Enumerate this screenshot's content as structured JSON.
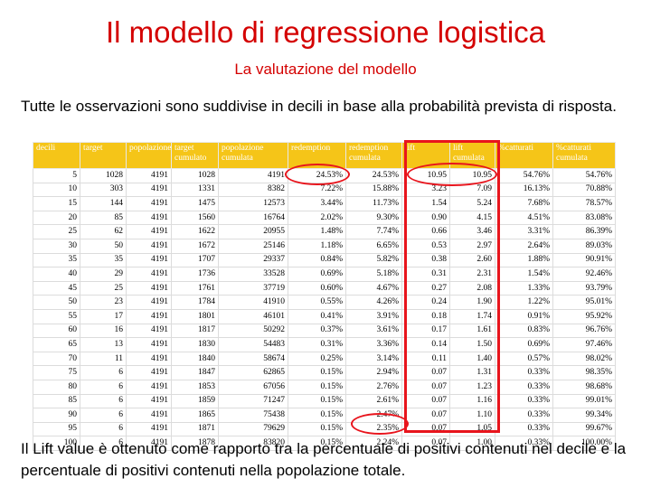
{
  "slide": {
    "title": "Il modello di regressione logistica",
    "subtitle": "La valutazione del modello",
    "intro": "Tutte le osservazioni sono suddivise in decili in base alla probabilità prevista di risposta.",
    "footer": "Il Lift value è ottenuto come rapporto tra la percentuale di positivi contenuti nel decile e la percentuale di positivi contenuti nella popolazione totale."
  },
  "colors": {
    "title": "#d40000",
    "header": "#f5c518",
    "highlight": "#e8141c"
  },
  "table": {
    "headers": [
      "decili",
      "target",
      "popolazione",
      "target cumulato",
      "popolazione cumulata",
      "redemption",
      "redemption cumulata",
      "lift",
      "lift cumulata",
      "%catturati",
      "%catturati cumulata"
    ],
    "rows": [
      [
        "5",
        "1028",
        "4191",
        "1028",
        "4191",
        "24.53%",
        "24.53%",
        "10.95",
        "10.95",
        "54.76%",
        "54.76%"
      ],
      [
        "10",
        "303",
        "4191",
        "1331",
        "8382",
        "7.22%",
        "15.88%",
        "3.23",
        "7.09",
        "16.13%",
        "70.88%"
      ],
      [
        "15",
        "144",
        "4191",
        "1475",
        "12573",
        "3.44%",
        "11.73%",
        "1.54",
        "5.24",
        "7.68%",
        "78.57%"
      ],
      [
        "20",
        "85",
        "4191",
        "1560",
        "16764",
        "2.02%",
        "9.30%",
        "0.90",
        "4.15",
        "4.51%",
        "83.08%"
      ],
      [
        "25",
        "62",
        "4191",
        "1622",
        "20955",
        "1.48%",
        "7.74%",
        "0.66",
        "3.46",
        "3.31%",
        "86.39%"
      ],
      [
        "30",
        "50",
        "4191",
        "1672",
        "25146",
        "1.18%",
        "6.65%",
        "0.53",
        "2.97",
        "2.64%",
        "89.03%"
      ],
      [
        "35",
        "35",
        "4191",
        "1707",
        "29337",
        "0.84%",
        "5.82%",
        "0.38",
        "2.60",
        "1.88%",
        "90.91%"
      ],
      [
        "40",
        "29",
        "4191",
        "1736",
        "33528",
        "0.69%",
        "5.18%",
        "0.31",
        "2.31",
        "1.54%",
        "92.46%"
      ],
      [
        "45",
        "25",
        "4191",
        "1761",
        "37719",
        "0.60%",
        "4.67%",
        "0.27",
        "2.08",
        "1.33%",
        "93.79%"
      ],
      [
        "50",
        "23",
        "4191",
        "1784",
        "41910",
        "0.55%",
        "4.26%",
        "0.24",
        "1.90",
        "1.22%",
        "95.01%"
      ],
      [
        "55",
        "17",
        "4191",
        "1801",
        "46101",
        "0.41%",
        "3.91%",
        "0.18",
        "1.74",
        "0.91%",
        "95.92%"
      ],
      [
        "60",
        "16",
        "4191",
        "1817",
        "50292",
        "0.37%",
        "3.61%",
        "0.17",
        "1.61",
        "0.83%",
        "96.76%"
      ],
      [
        "65",
        "13",
        "4191",
        "1830",
        "54483",
        "0.31%",
        "3.36%",
        "0.14",
        "1.50",
        "0.69%",
        "97.46%"
      ],
      [
        "70",
        "11",
        "4191",
        "1840",
        "58674",
        "0.25%",
        "3.14%",
        "0.11",
        "1.40",
        "0.57%",
        "98.02%"
      ],
      [
        "75",
        "6",
        "4191",
        "1847",
        "62865",
        "0.15%",
        "2.94%",
        "0.07",
        "1.31",
        "0.33%",
        "98.35%"
      ],
      [
        "80",
        "6",
        "4191",
        "1853",
        "67056",
        "0.15%",
        "2.76%",
        "0.07",
        "1.23",
        "0.33%",
        "98.68%"
      ],
      [
        "85",
        "6",
        "4191",
        "1859",
        "71247",
        "0.15%",
        "2.61%",
        "0.07",
        "1.16",
        "0.33%",
        "99.01%"
      ],
      [
        "90",
        "6",
        "4191",
        "1865",
        "75438",
        "0.15%",
        "2.47%",
        "0.07",
        "1.10",
        "0.33%",
        "99.34%"
      ],
      [
        "95",
        "6",
        "4191",
        "1871",
        "79629",
        "0.15%",
        "2.35%",
        "0.07",
        "1.05",
        "0.33%",
        "99.67%"
      ],
      [
        "100",
        "6",
        "4191",
        "1878",
        "83820",
        "0.15%",
        "2.24%",
        "0.07",
        "1.00",
        "0.33%",
        "100.00%"
      ]
    ]
  }
}
